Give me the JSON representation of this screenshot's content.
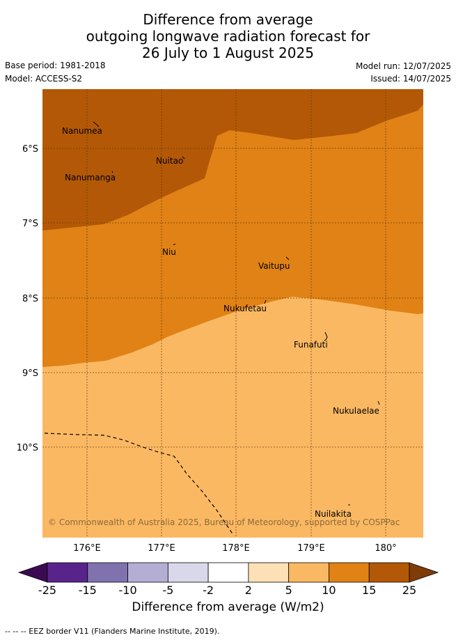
{
  "title": {
    "line1": "Difference from average",
    "line2": "outgoing longwave radiation forecast for",
    "line3": "26 July to 1 August 2025"
  },
  "meta": {
    "base_period": "Base period: 1981-2018",
    "model": "Model: ACCESS-S2",
    "model_run": "Model run: 12/07/2025",
    "issued": "Issued: 14/07/2025"
  },
  "map": {
    "lon_labels": [
      "176°E",
      "177°E",
      "178°E",
      "179°E",
      "180°"
    ],
    "lat_labels": [
      "6°S",
      "7°S",
      "8°S",
      "9°S",
      "10°S"
    ],
    "places": [
      "Nanumea",
      "Nuitao",
      "Nanumanga",
      "Niu",
      "Vaitupu",
      "Nukufetau",
      "Funafuti",
      "Nukulaelae",
      "Nuilakita"
    ],
    "copyright": "© Commonwealth of Australia 2025, Bureau of Meteorology, supported by COSPPac"
  },
  "colorbar": {
    "ticks": [
      "-25",
      "-15",
      "-10",
      "-5",
      "-2",
      "2",
      "5",
      "10",
      "15",
      "25"
    ],
    "colors": [
      "#3b0b52",
      "#58248c",
      "#8072ae",
      "#b4aed4",
      "#d9d8ea",
      "#ffffff",
      "#fde0b6",
      "#fbb863",
      "#e08215",
      "#b35806",
      "#7f3b08"
    ],
    "label": "Difference from average (W/m2)"
  },
  "legend": {
    "eez": "--  --  -- EEZ border V11 (Flanders Marine Institute, 2019)."
  }
}
